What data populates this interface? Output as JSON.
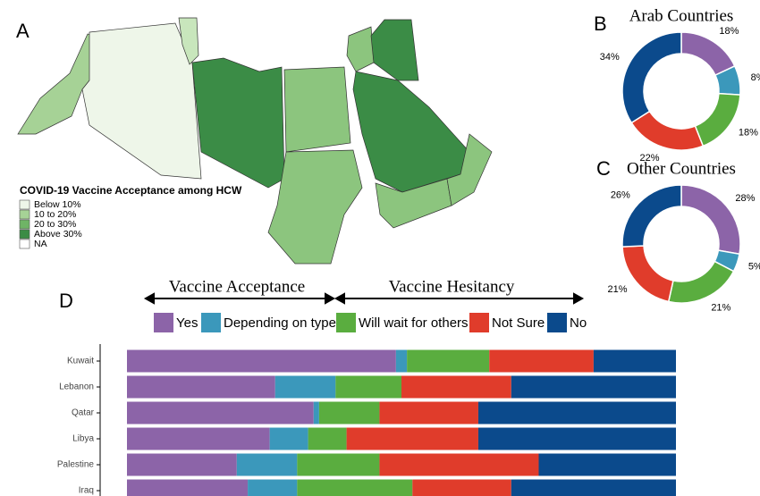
{
  "panels": {
    "a": "A",
    "b": "B",
    "c": "C",
    "d": "D"
  },
  "map": {
    "legend_title": "COVID-19 Vaccine Acceptance among HCW",
    "legend": [
      {
        "label": "Below 10%",
        "color": "#eef6e9"
      },
      {
        "label": "10 to 20%",
        "color": "#a6d296"
      },
      {
        "label": "20 to 30%",
        "color": "#6fb466"
      },
      {
        "label": "Above 30%",
        "color": "#3b8c46"
      },
      {
        "label": "NA",
        "color": "#ffffff"
      }
    ]
  },
  "chart_data": [
    {
      "type": "donut",
      "title": "Arab Countries",
      "categories": [
        "Yes",
        "Depending on type",
        "Will wait for others",
        "Not Sure",
        "No"
      ],
      "colors": [
        "#8c64a8",
        "#3b98bb",
        "#5aad3f",
        "#e03c2b",
        "#0b4a8c"
      ],
      "values": [
        18,
        8,
        18,
        22,
        34
      ],
      "value_labels": [
        "18%",
        "8%",
        "18%",
        "22%",
        "34%"
      ]
    },
    {
      "type": "donut",
      "title": "Other Countries",
      "categories": [
        "Yes",
        "Depending on type",
        "Will wait for others",
        "Not Sure",
        "No"
      ],
      "colors": [
        "#8c64a8",
        "#3b98bb",
        "#5aad3f",
        "#e03c2b",
        "#0b4a8c"
      ],
      "values": [
        28,
        5,
        21,
        21,
        26
      ],
      "value_labels": [
        "28%",
        "5%",
        "21%",
        "21%",
        "26%"
      ]
    },
    {
      "type": "stacked_barh",
      "annotations": [
        "Vaccine Acceptance",
        "Vaccine Hesitancy"
      ],
      "categories": [
        "Kuwait",
        "Lebanon",
        "Qatar",
        "Libya",
        "Palestine",
        "Iraq"
      ],
      "xlim": [
        0,
        100
      ],
      "legend": "top",
      "series": [
        {
          "name": "Yes",
          "color": "#8c64a8",
          "values": [
            49,
            27,
            34,
            26,
            20,
            22
          ]
        },
        {
          "name": "Depending on type",
          "color": "#3b98bb",
          "values": [
            2,
            11,
            1,
            7,
            11,
            9
          ]
        },
        {
          "name": "Will wait for others",
          "color": "#5aad3f",
          "values": [
            15,
            12,
            11,
            7,
            15,
            21
          ]
        },
        {
          "name": "Not Sure",
          "color": "#e03c2b",
          "values": [
            19,
            20,
            18,
            24,
            29,
            18
          ]
        },
        {
          "name": "No",
          "color": "#0b4a8c",
          "values": [
            15,
            30,
            36,
            36,
            25,
            30
          ]
        }
      ]
    }
  ]
}
